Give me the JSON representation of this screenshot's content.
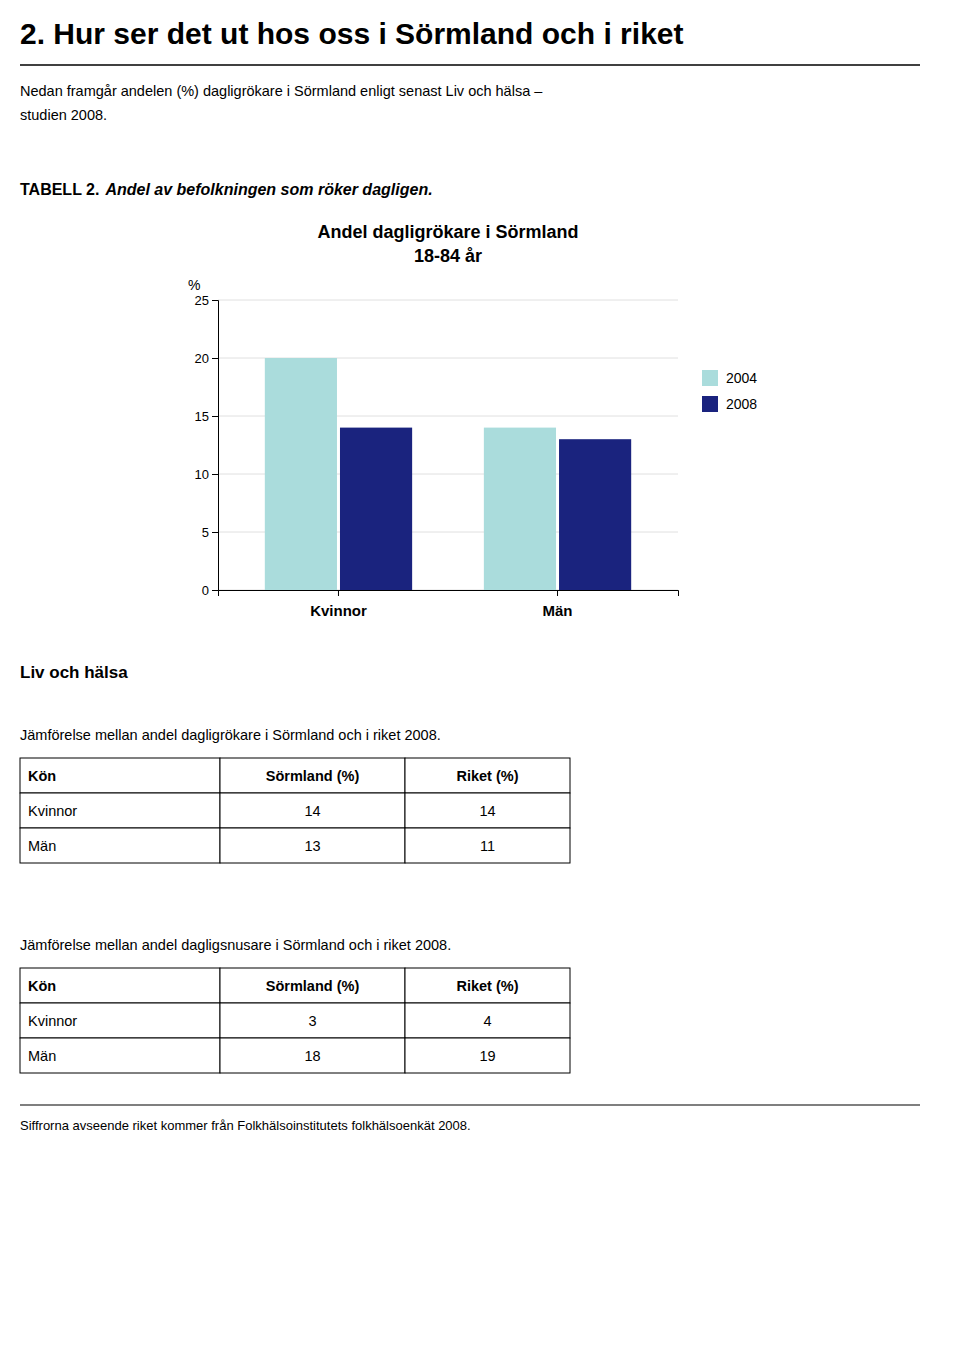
{
  "page_title": "2. Hur ser det ut hos oss i Sörmland och i riket",
  "intro_text": "Nedan framgår andelen (%) dagligrökare i Sörmland enligt senast Liv och hälsa –\nstudien 2008.",
  "table_label": "TABELL 2.",
  "table_label_italic": "Andel av befolkningen som röker dagligen.",
  "chart_data": {
    "type": "bar",
    "title": "Andel dagligrökare i Sörmland",
    "subtitle": "18-84 år",
    "y_label": "%",
    "categories": [
      "Kvinnor",
      "Män"
    ],
    "series": [
      {
        "name": "2004",
        "color": "#aadcdc",
        "values": [
          20,
          14
        ]
      },
      {
        "name": "2008",
        "color": "#1a237e",
        "values": [
          14,
          13
        ]
      }
    ],
    "ylim": [
      0,
      25
    ],
    "yticks": [
      0,
      5,
      10,
      15,
      20,
      25
    ],
    "grid": true,
    "legend": "right"
  },
  "section_heading": "Liv och hälsa",
  "tables": [
    {
      "caption": "Jämförelse mellan andel dagligrökare i Sörmland och i riket 2008.",
      "headers": [
        "Kön",
        "Sörmland (%)",
        "Riket (%)"
      ],
      "rows": [
        [
          "Kvinnor",
          "14",
          "14"
        ],
        [
          "Män",
          "13",
          "11"
        ]
      ]
    },
    {
      "caption": "Jämförelse mellan andel dagligsnusare i Sörmland och i riket 2008.",
      "headers": [
        "Kön",
        "Sörmland (%)",
        "Riket (%)"
      ],
      "rows": [
        [
          "Kvinnor",
          "3",
          "4"
        ],
        [
          "Män",
          "18",
          "19"
        ]
      ]
    }
  ],
  "footer_text": "Siffrorna avseende riket kommer från Folkhälsoinstitutets folkhälsoenkät 2008."
}
